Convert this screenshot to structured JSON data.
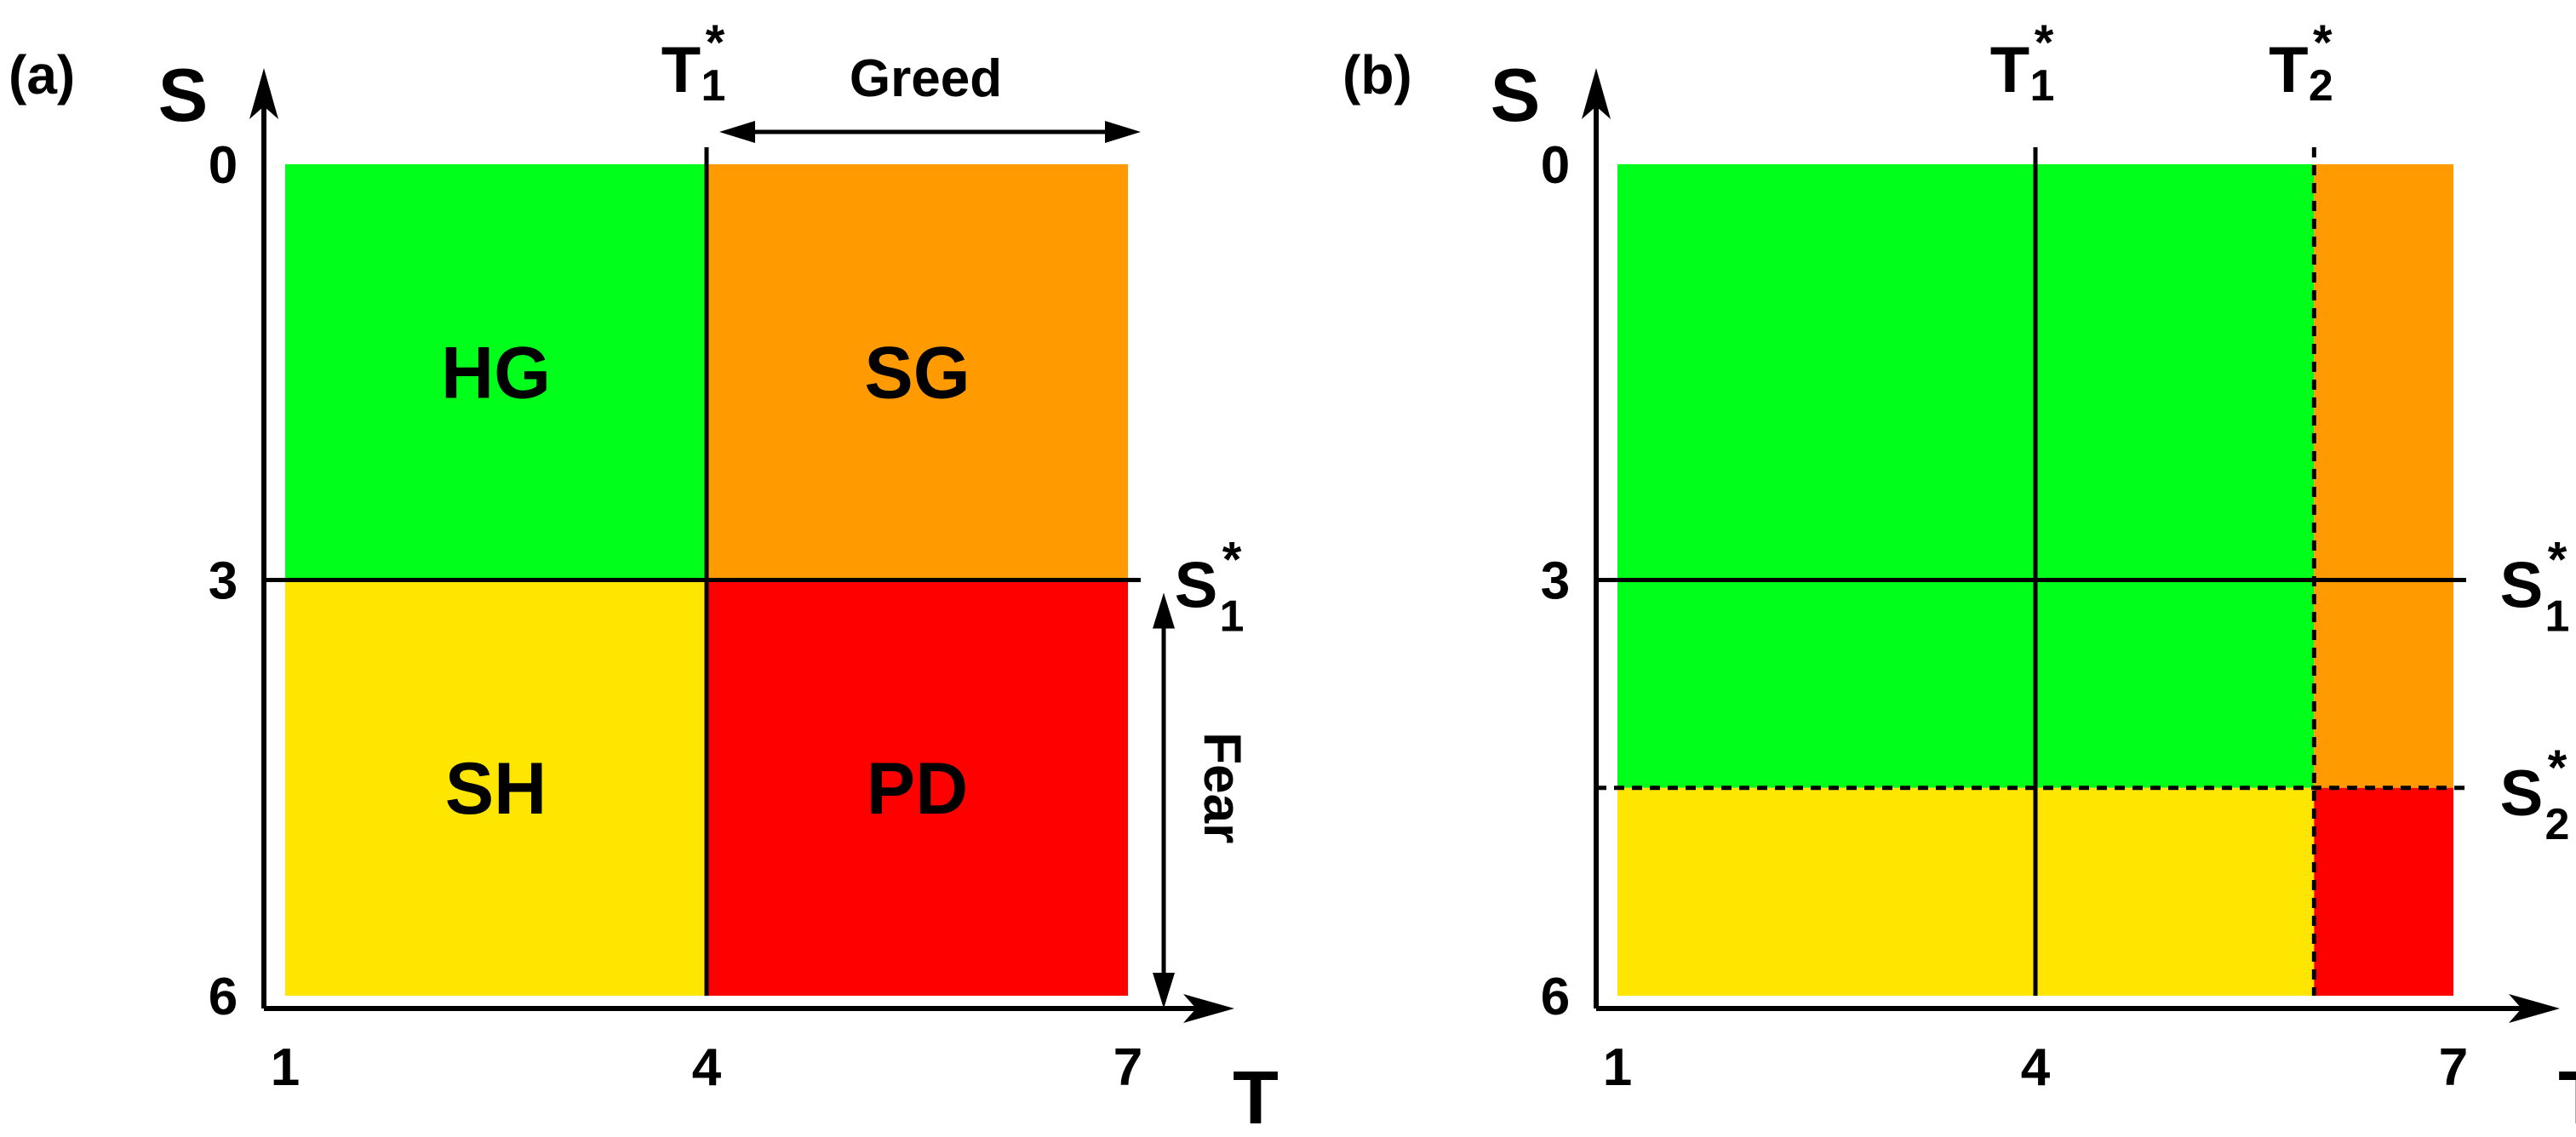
{
  "colors": {
    "HG": "#00ff1a",
    "SG": "#ff9a00",
    "SH": "#ffe600",
    "PD": "#ff0000",
    "axis": "#000000"
  },
  "panels": [
    {
      "label": "(a)",
      "x_axis_label": "T",
      "y_axis_label": "S",
      "x_ticks": [
        "1",
        "4",
        "7"
      ],
      "y_ticks": [
        "0",
        "3",
        "6"
      ],
      "regions": [
        {
          "label": "HG",
          "color_key": "HG",
          "t_range": [
            1,
            4
          ],
          "s_range": [
            0,
            3
          ]
        },
        {
          "label": "SG",
          "color_key": "SG",
          "t_range": [
            4,
            7
          ],
          "s_range": [
            0,
            3
          ]
        },
        {
          "label": "SH",
          "color_key": "SH",
          "t_range": [
            1,
            4
          ],
          "s_range": [
            3,
            6
          ]
        },
        {
          "label": "PD",
          "color_key": "PD",
          "t_range": [
            4,
            7
          ],
          "s_range": [
            3,
            6
          ]
        }
      ],
      "threshold_lines": [
        {
          "orientation": "vertical",
          "value": 4,
          "style": "solid",
          "label_main": "T",
          "label_sub": "1",
          "label_sup": "*"
        },
        {
          "orientation": "horizontal",
          "value": 3,
          "style": "solid",
          "label_main": "S",
          "label_sub": "1",
          "label_sup": "*"
        }
      ],
      "annotations": [
        {
          "text": "Greed",
          "arrow": "horizontal",
          "from": 4,
          "to": 7
        },
        {
          "text": "Fear",
          "arrow": "vertical",
          "from": 3,
          "to": 6
        }
      ]
    },
    {
      "label": "(b)",
      "x_axis_label": "T",
      "y_axis_label": "S",
      "x_ticks": [
        "1",
        "4",
        "7"
      ],
      "y_ticks": [
        "0",
        "3",
        "6"
      ],
      "regions": [
        {
          "label": "",
          "color_key": "HG",
          "t_range": [
            1,
            6
          ],
          "s_range": [
            0,
            4.5
          ]
        },
        {
          "label": "",
          "color_key": "SG",
          "t_range": [
            6,
            7
          ],
          "s_range": [
            0,
            4.5
          ]
        },
        {
          "label": "",
          "color_key": "SH",
          "t_range": [
            1,
            6
          ],
          "s_range": [
            4.5,
            6
          ]
        },
        {
          "label": "",
          "color_key": "PD",
          "t_range": [
            6,
            7
          ],
          "s_range": [
            4.5,
            6
          ]
        }
      ],
      "threshold_lines": [
        {
          "orientation": "vertical",
          "value": 4,
          "style": "solid",
          "label_main": "T",
          "label_sub": "1",
          "label_sup": "*"
        },
        {
          "orientation": "vertical",
          "value": 6,
          "style": "dashed",
          "label_main": "T",
          "label_sub": "2",
          "label_sup": "*"
        },
        {
          "orientation": "horizontal",
          "value": 3,
          "style": "solid",
          "label_main": "S",
          "label_sub": "1",
          "label_sup": "*"
        },
        {
          "orientation": "horizontal",
          "value": 4.5,
          "style": "dashed",
          "label_main": "S",
          "label_sub": "2",
          "label_sup": "*"
        }
      ],
      "annotations": []
    }
  ]
}
